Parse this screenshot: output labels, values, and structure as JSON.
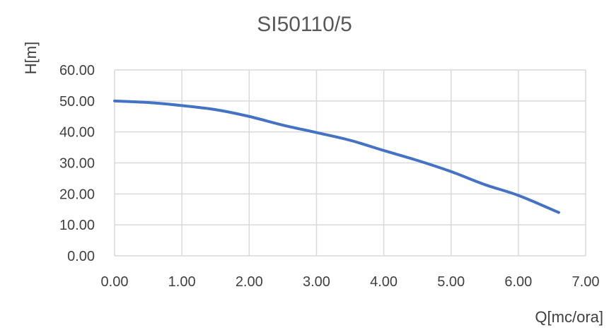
{
  "chart_data": {
    "type": "line",
    "title": "SI50110/5",
    "xlabel": "Q[mc/ora]",
    "ylabel": "H[m]",
    "xlim": [
      0,
      7
    ],
    "ylim": [
      0,
      60
    ],
    "x_ticks": [
      "0.00",
      "1.00",
      "2.00",
      "3.00",
      "4.00",
      "5.00",
      "6.00",
      "7.00"
    ],
    "y_ticks": [
      "0.00",
      "10.00",
      "20.00",
      "30.00",
      "40.00",
      "50.00",
      "60.00"
    ],
    "grid": true,
    "series": [
      {
        "color": "#4472c4",
        "x": [
          0.0,
          0.5,
          1.0,
          1.5,
          2.0,
          2.5,
          3.0,
          3.5,
          4.0,
          4.5,
          5.0,
          5.5,
          6.0,
          6.6
        ],
        "y": [
          50.0,
          49.5,
          48.5,
          47.2,
          45.0,
          42.2,
          39.8,
          37.3,
          34.0,
          30.8,
          27.2,
          23.0,
          19.5,
          14.0
        ]
      }
    ]
  }
}
